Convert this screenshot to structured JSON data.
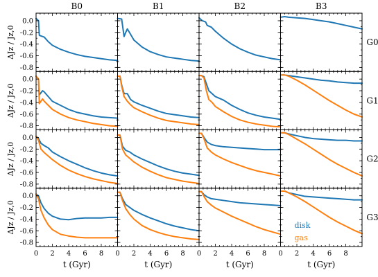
{
  "chart_data": {
    "type": "line",
    "columns": [
      "B0",
      "B1",
      "B2",
      "B3"
    ],
    "rows": [
      "G0",
      "G1",
      "G2",
      "G3"
    ],
    "xlabel": "t (Gyr)",
    "ylabel": "ΔJz / Jz,0",
    "xlim": [
      0,
      10
    ],
    "ylim": [
      -0.87,
      0.13
    ],
    "xticks": [
      "0",
      "2",
      "4",
      "6",
      "8"
    ],
    "yticks": [
      "0.0",
      "-0.2",
      "-0.4",
      "-0.6",
      "-0.8"
    ],
    "legend": {
      "placement": "lower-left of panel G3/B3",
      "entries": [
        {
          "label": "disk",
          "color": "#1f77b4"
        },
        {
          "label": "gas",
          "color": "#ff7f0e"
        }
      ]
    },
    "colors": {
      "disk": "#1f77b4",
      "gas": "#ff7f0e"
    },
    "panels": [
      {
        "row": "G0",
        "col": "B0",
        "disk": {
          "x": [
            0,
            0.3,
            0.4,
            1,
            1.5,
            2,
            3,
            4,
            5,
            6,
            7,
            8,
            9,
            10
          ],
          "y": [
            0.04,
            0.0,
            -0.25,
            -0.28,
            -0.36,
            -0.42,
            -0.49,
            -0.54,
            -0.58,
            -0.61,
            -0.63,
            -0.65,
            -0.67,
            -0.68
          ]
        }
      },
      {
        "row": "G0",
        "col": "B1",
        "disk": {
          "x": [
            0,
            0.5,
            0.8,
            1.0,
            1.2,
            1.5,
            2,
            3,
            4,
            5,
            6,
            7,
            8,
            9,
            10
          ],
          "y": [
            0.04,
            0.03,
            -0.27,
            -0.2,
            -0.14,
            -0.21,
            -0.33,
            -0.45,
            -0.53,
            -0.58,
            -0.62,
            -0.64,
            -0.66,
            -0.68,
            -0.69
          ]
        }
      },
      {
        "row": "G0",
        "col": "B2",
        "disk": {
          "x": [
            0,
            0.4,
            0.8,
            1,
            1.5,
            2,
            3,
            4,
            5,
            6,
            7,
            8,
            9,
            10
          ],
          "y": [
            0.05,
            0.0,
            -0.02,
            -0.08,
            -0.11,
            -0.18,
            -0.3,
            -0.4,
            -0.48,
            -0.54,
            -0.59,
            -0.62,
            -0.65,
            -0.67
          ]
        }
      },
      {
        "row": "G0",
        "col": "B3",
        "disk": {
          "x": [
            0,
            0.5,
            1,
            2,
            3,
            4,
            5,
            6,
            7,
            8,
            9,
            10
          ],
          "y": [
            0.06,
            0.07,
            0.06,
            0.05,
            0.04,
            0.02,
            0.0,
            -0.02,
            -0.05,
            -0.08,
            -0.11,
            -0.14
          ]
        }
      },
      {
        "row": "G1",
        "col": "B0",
        "disk": {
          "x": [
            0,
            0.3,
            0.4,
            0.8,
            1,
            1.5,
            2,
            3,
            4,
            5,
            6,
            7,
            8,
            9,
            10
          ],
          "y": [
            0.05,
            0.0,
            -0.27,
            -0.2,
            -0.22,
            -0.3,
            -0.38,
            -0.45,
            -0.52,
            -0.57,
            -0.6,
            -0.63,
            -0.65,
            -0.66,
            -0.67
          ]
        },
        "gas": {
          "x": [
            0,
            0.3,
            0.4,
            0.8,
            1,
            1.5,
            2,
            3,
            4,
            5,
            6,
            7,
            8,
            9,
            10
          ],
          "y": [
            0.05,
            0.0,
            -0.42,
            -0.34,
            -0.38,
            -0.45,
            -0.52,
            -0.6,
            -0.66,
            -0.7,
            -0.73,
            -0.76,
            -0.78,
            -0.8,
            -0.81
          ]
        }
      },
      {
        "row": "G1",
        "col": "B1",
        "disk": {
          "x": [
            0,
            0.3,
            0.5,
            0.8,
            1.2,
            1.6,
            2,
            3,
            4,
            5,
            6,
            7,
            8,
            9,
            10
          ],
          "y": [
            0.05,
            0.05,
            -0.1,
            -0.25,
            -0.25,
            -0.35,
            -0.39,
            -0.45,
            -0.5,
            -0.55,
            -0.59,
            -0.61,
            -0.63,
            -0.65,
            -0.66
          ]
        },
        "gas": {
          "x": [
            0,
            0.3,
            0.5,
            0.8,
            1.2,
            1.6,
            2,
            3,
            4,
            5,
            6,
            7,
            8,
            9,
            10
          ],
          "y": [
            0.05,
            0.05,
            -0.12,
            -0.3,
            -0.38,
            -0.44,
            -0.49,
            -0.56,
            -0.62,
            -0.67,
            -0.71,
            -0.73,
            -0.75,
            -0.77,
            -0.78
          ]
        }
      },
      {
        "row": "G1",
        "col": "B2",
        "disk": {
          "x": [
            0,
            0.3,
            0.6,
            0.9,
            1.2,
            1.6,
            2,
            3,
            4,
            5,
            6,
            7,
            8,
            9,
            10
          ],
          "y": [
            0.06,
            0.06,
            0.04,
            -0.08,
            -0.2,
            -0.25,
            -0.3,
            -0.36,
            -0.45,
            -0.52,
            -0.58,
            -0.62,
            -0.65,
            -0.67,
            -0.69
          ]
        },
        "gas": {
          "x": [
            0,
            0.3,
            0.6,
            0.9,
            1.2,
            1.6,
            2,
            3,
            4,
            5,
            6,
            7,
            8,
            9,
            10
          ],
          "y": [
            0.06,
            0.06,
            0.02,
            -0.2,
            -0.35,
            -0.4,
            -0.47,
            -0.56,
            -0.64,
            -0.7,
            -0.74,
            -0.77,
            -0.79,
            -0.81,
            -0.82
          ]
        }
      },
      {
        "row": "G1",
        "col": "B3",
        "disk": {
          "x": [
            0,
            0.5,
            1,
            2,
            3,
            4,
            5,
            6,
            7,
            8,
            9,
            10
          ],
          "y": [
            0.07,
            0.07,
            0.06,
            0.04,
            0.02,
            0.0,
            -0.02,
            -0.03,
            -0.05,
            -0.06,
            -0.07,
            -0.07
          ]
        },
        "gas": {
          "x": [
            0,
            0.5,
            1,
            2,
            3,
            4,
            5,
            6,
            7,
            8,
            9,
            10
          ],
          "y": [
            0.07,
            0.07,
            0.05,
            -0.02,
            -0.1,
            -0.19,
            -0.28,
            -0.37,
            -0.45,
            -0.53,
            -0.6,
            -0.65
          ]
        }
      },
      {
        "row": "G2",
        "col": "B0",
        "disk": {
          "x": [
            0,
            0.3,
            0.6,
            1,
            1.5,
            2,
            3,
            4,
            5,
            6,
            7,
            8,
            9,
            10
          ],
          "y": [
            0.02,
            -0.02,
            -0.1,
            -0.14,
            -0.18,
            -0.25,
            -0.33,
            -0.4,
            -0.46,
            -0.52,
            -0.57,
            -0.61,
            -0.64,
            -0.66
          ]
        },
        "gas": {
          "x": [
            0,
            0.3,
            0.6,
            1,
            1.5,
            2,
            3,
            4,
            5,
            6,
            7,
            8,
            9,
            10
          ],
          "y": [
            0.02,
            -0.05,
            -0.2,
            -0.26,
            -0.32,
            -0.38,
            -0.48,
            -0.56,
            -0.62,
            -0.67,
            -0.71,
            -0.74,
            -0.77,
            -0.79
          ]
        }
      },
      {
        "row": "G2",
        "col": "B1",
        "disk": {
          "x": [
            0,
            0.3,
            0.6,
            1,
            1.5,
            2,
            3,
            4,
            5,
            6,
            7,
            8,
            9,
            10
          ],
          "y": [
            0.04,
            0.04,
            -0.15,
            -0.22,
            -0.25,
            -0.3,
            -0.37,
            -0.43,
            -0.49,
            -0.54,
            -0.58,
            -0.61,
            -0.63,
            -0.65
          ]
        },
        "gas": {
          "x": [
            0,
            0.3,
            0.6,
            1,
            1.5,
            2,
            3,
            4,
            5,
            6,
            7,
            8,
            9,
            10
          ],
          "y": [
            0.04,
            0.04,
            -0.2,
            -0.3,
            -0.36,
            -0.42,
            -0.51,
            -0.58,
            -0.64,
            -0.69,
            -0.72,
            -0.75,
            -0.77,
            -0.79
          ]
        }
      },
      {
        "row": "G2",
        "col": "B2",
        "disk": {
          "x": [
            0,
            0.3,
            0.6,
            1,
            1.5,
            2,
            3,
            4,
            5,
            6,
            7,
            8,
            9,
            10
          ],
          "y": [
            0.07,
            0.07,
            0.0,
            -0.08,
            -0.12,
            -0.14,
            -0.16,
            -0.17,
            -0.18,
            -0.19,
            -0.2,
            -0.21,
            -0.21,
            -0.21
          ]
        },
        "gas": {
          "x": [
            0,
            0.3,
            0.6,
            1,
            1.5,
            2,
            3,
            4,
            5,
            6,
            7,
            8,
            9,
            10
          ],
          "y": [
            0.07,
            0.07,
            -0.02,
            -0.18,
            -0.25,
            -0.3,
            -0.37,
            -0.43,
            -0.48,
            -0.53,
            -0.57,
            -0.6,
            -0.63,
            -0.66
          ]
        }
      },
      {
        "row": "G2",
        "col": "B3",
        "disk": {
          "x": [
            0,
            0.5,
            1,
            2,
            3,
            4,
            5,
            6,
            7,
            8,
            9,
            10
          ],
          "y": [
            0.08,
            0.08,
            0.06,
            0.03,
            0.0,
            -0.02,
            -0.03,
            -0.04,
            -0.05,
            -0.05,
            -0.06,
            -0.06
          ]
        },
        "gas": {
          "x": [
            0,
            0.5,
            1,
            2,
            3,
            4,
            5,
            6,
            7,
            8,
            9,
            10
          ],
          "y": [
            0.08,
            0.08,
            0.05,
            -0.03,
            -0.11,
            -0.2,
            -0.29,
            -0.38,
            -0.46,
            -0.53,
            -0.6,
            -0.66
          ]
        }
      },
      {
        "row": "G3",
        "col": "B0",
        "disk": {
          "x": [
            0,
            0.3,
            0.6,
            1,
            1.5,
            2,
            3,
            4,
            5,
            6,
            7,
            8,
            9,
            10
          ],
          "y": [
            0.03,
            0.0,
            -0.12,
            -0.22,
            -0.3,
            -0.35,
            -0.4,
            -0.41,
            -0.39,
            -0.38,
            -0.38,
            -0.38,
            -0.37,
            -0.37
          ]
        },
        "gas": {
          "x": [
            0,
            0.3,
            0.6,
            1,
            1.5,
            2,
            3,
            4,
            5,
            6,
            7,
            8,
            9,
            10
          ],
          "y": [
            0.03,
            -0.05,
            -0.25,
            -0.38,
            -0.5,
            -0.58,
            -0.66,
            -0.69,
            -0.71,
            -0.72,
            -0.72,
            -0.72,
            -0.72,
            -0.72
          ]
        }
      },
      {
        "row": "G3",
        "col": "B1",
        "disk": {
          "x": [
            0,
            0.3,
            0.6,
            1,
            1.5,
            2,
            3,
            4,
            5,
            6,
            7,
            8,
            9,
            10
          ],
          "y": [
            0.06,
            0.06,
            -0.05,
            -0.15,
            -0.2,
            -0.25,
            -0.32,
            -0.38,
            -0.43,
            -0.48,
            -0.52,
            -0.55,
            -0.58,
            -0.6
          ]
        },
        "gas": {
          "x": [
            0,
            0.3,
            0.6,
            1,
            1.5,
            2,
            3,
            4,
            5,
            6,
            7,
            8,
            9,
            10
          ],
          "y": [
            0.06,
            0.06,
            -0.08,
            -0.22,
            -0.32,
            -0.4,
            -0.51,
            -0.58,
            -0.63,
            -0.67,
            -0.7,
            -0.72,
            -0.74,
            -0.75
          ]
        }
      },
      {
        "row": "G3",
        "col": "B2",
        "disk": {
          "x": [
            0,
            0.3,
            0.6,
            1,
            1.5,
            2,
            3,
            4,
            5,
            6,
            7,
            8,
            9,
            10
          ],
          "y": [
            0.07,
            0.07,
            0.02,
            -0.02,
            -0.05,
            -0.06,
            -0.08,
            -0.1,
            -0.12,
            -0.13,
            -0.14,
            -0.15,
            -0.16,
            -0.17
          ]
        },
        "gas": {
          "x": [
            0,
            0.3,
            0.6,
            1,
            1.5,
            2,
            3,
            4,
            5,
            6,
            7,
            8,
            9,
            10
          ],
          "y": [
            0.07,
            0.07,
            -0.01,
            -0.1,
            -0.16,
            -0.21,
            -0.28,
            -0.35,
            -0.41,
            -0.47,
            -0.53,
            -0.58,
            -0.62,
            -0.66
          ]
        }
      },
      {
        "row": "G3",
        "col": "B3",
        "disk": {
          "x": [
            0,
            0.5,
            1,
            2,
            3,
            4,
            5,
            6,
            7,
            8,
            9,
            10
          ],
          "y": [
            0.08,
            0.08,
            0.05,
            0.02,
            -0.01,
            -0.02,
            -0.03,
            -0.04,
            -0.05,
            -0.06,
            -0.07,
            -0.07
          ]
        },
        "gas": {
          "x": [
            0,
            0.5,
            1,
            2,
            3,
            4,
            5,
            6,
            7,
            8,
            9,
            10
          ],
          "y": [
            0.08,
            0.08,
            0.05,
            -0.02,
            -0.1,
            -0.19,
            -0.28,
            -0.37,
            -0.45,
            -0.52,
            -0.59,
            -0.65
          ]
        }
      }
    ]
  }
}
